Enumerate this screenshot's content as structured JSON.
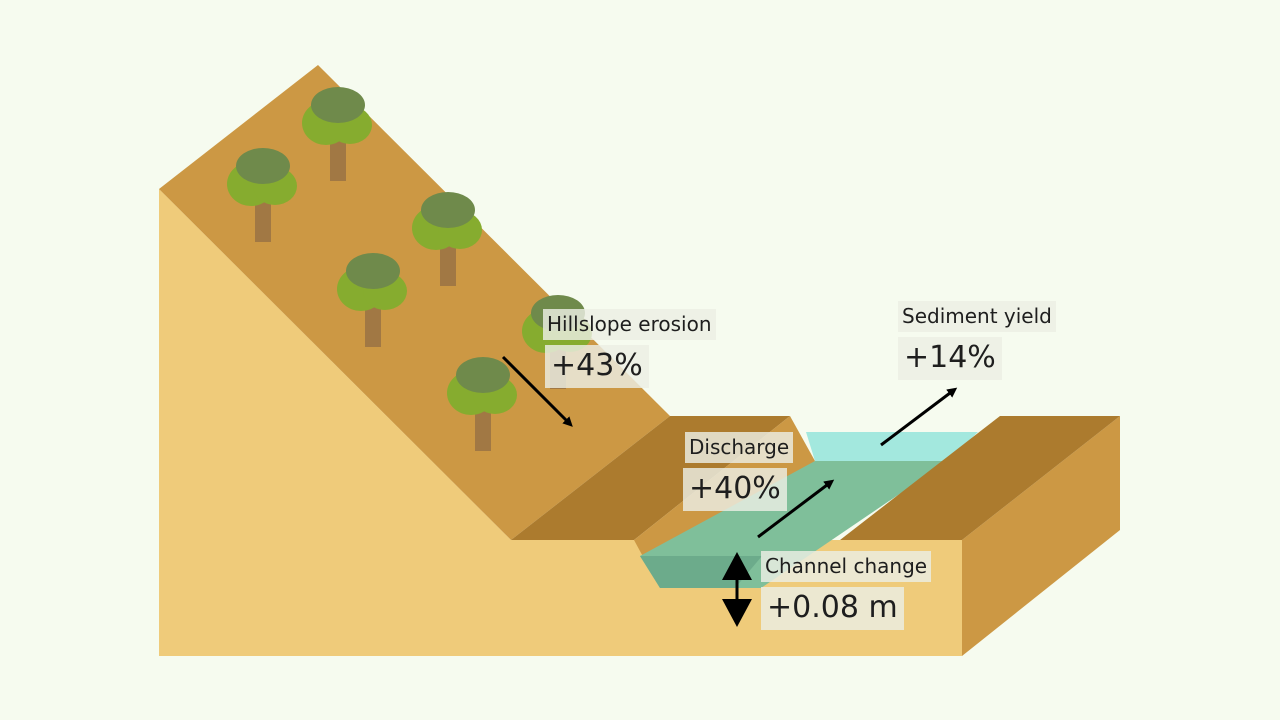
{
  "colors": {
    "background": "#f6fbef",
    "soil_front": "#efcb7a",
    "soil_top": "#cc9844",
    "soil_side": "#ac7b2e",
    "water_top": "#a3e8de",
    "water": "#7fbf9a",
    "tree_trunk": "#a17844",
    "tree_canopy_dark": "#6f8a4b",
    "tree_canopy_light": "#86ac2f",
    "arrow": "#000000"
  },
  "icons": [
    "tree-icon",
    "arrow-icon",
    "double-arrow-icon"
  ],
  "labels": {
    "hillslope_erosion": {
      "name": "Hillslope erosion",
      "value": "+43%"
    },
    "sediment_yield": {
      "name": "Sediment yield",
      "value": "+14%"
    },
    "discharge": {
      "name": "Discharge",
      "value": "+40%"
    },
    "channel_change": {
      "name": "Channel change",
      "value": "+0.08 m"
    }
  }
}
